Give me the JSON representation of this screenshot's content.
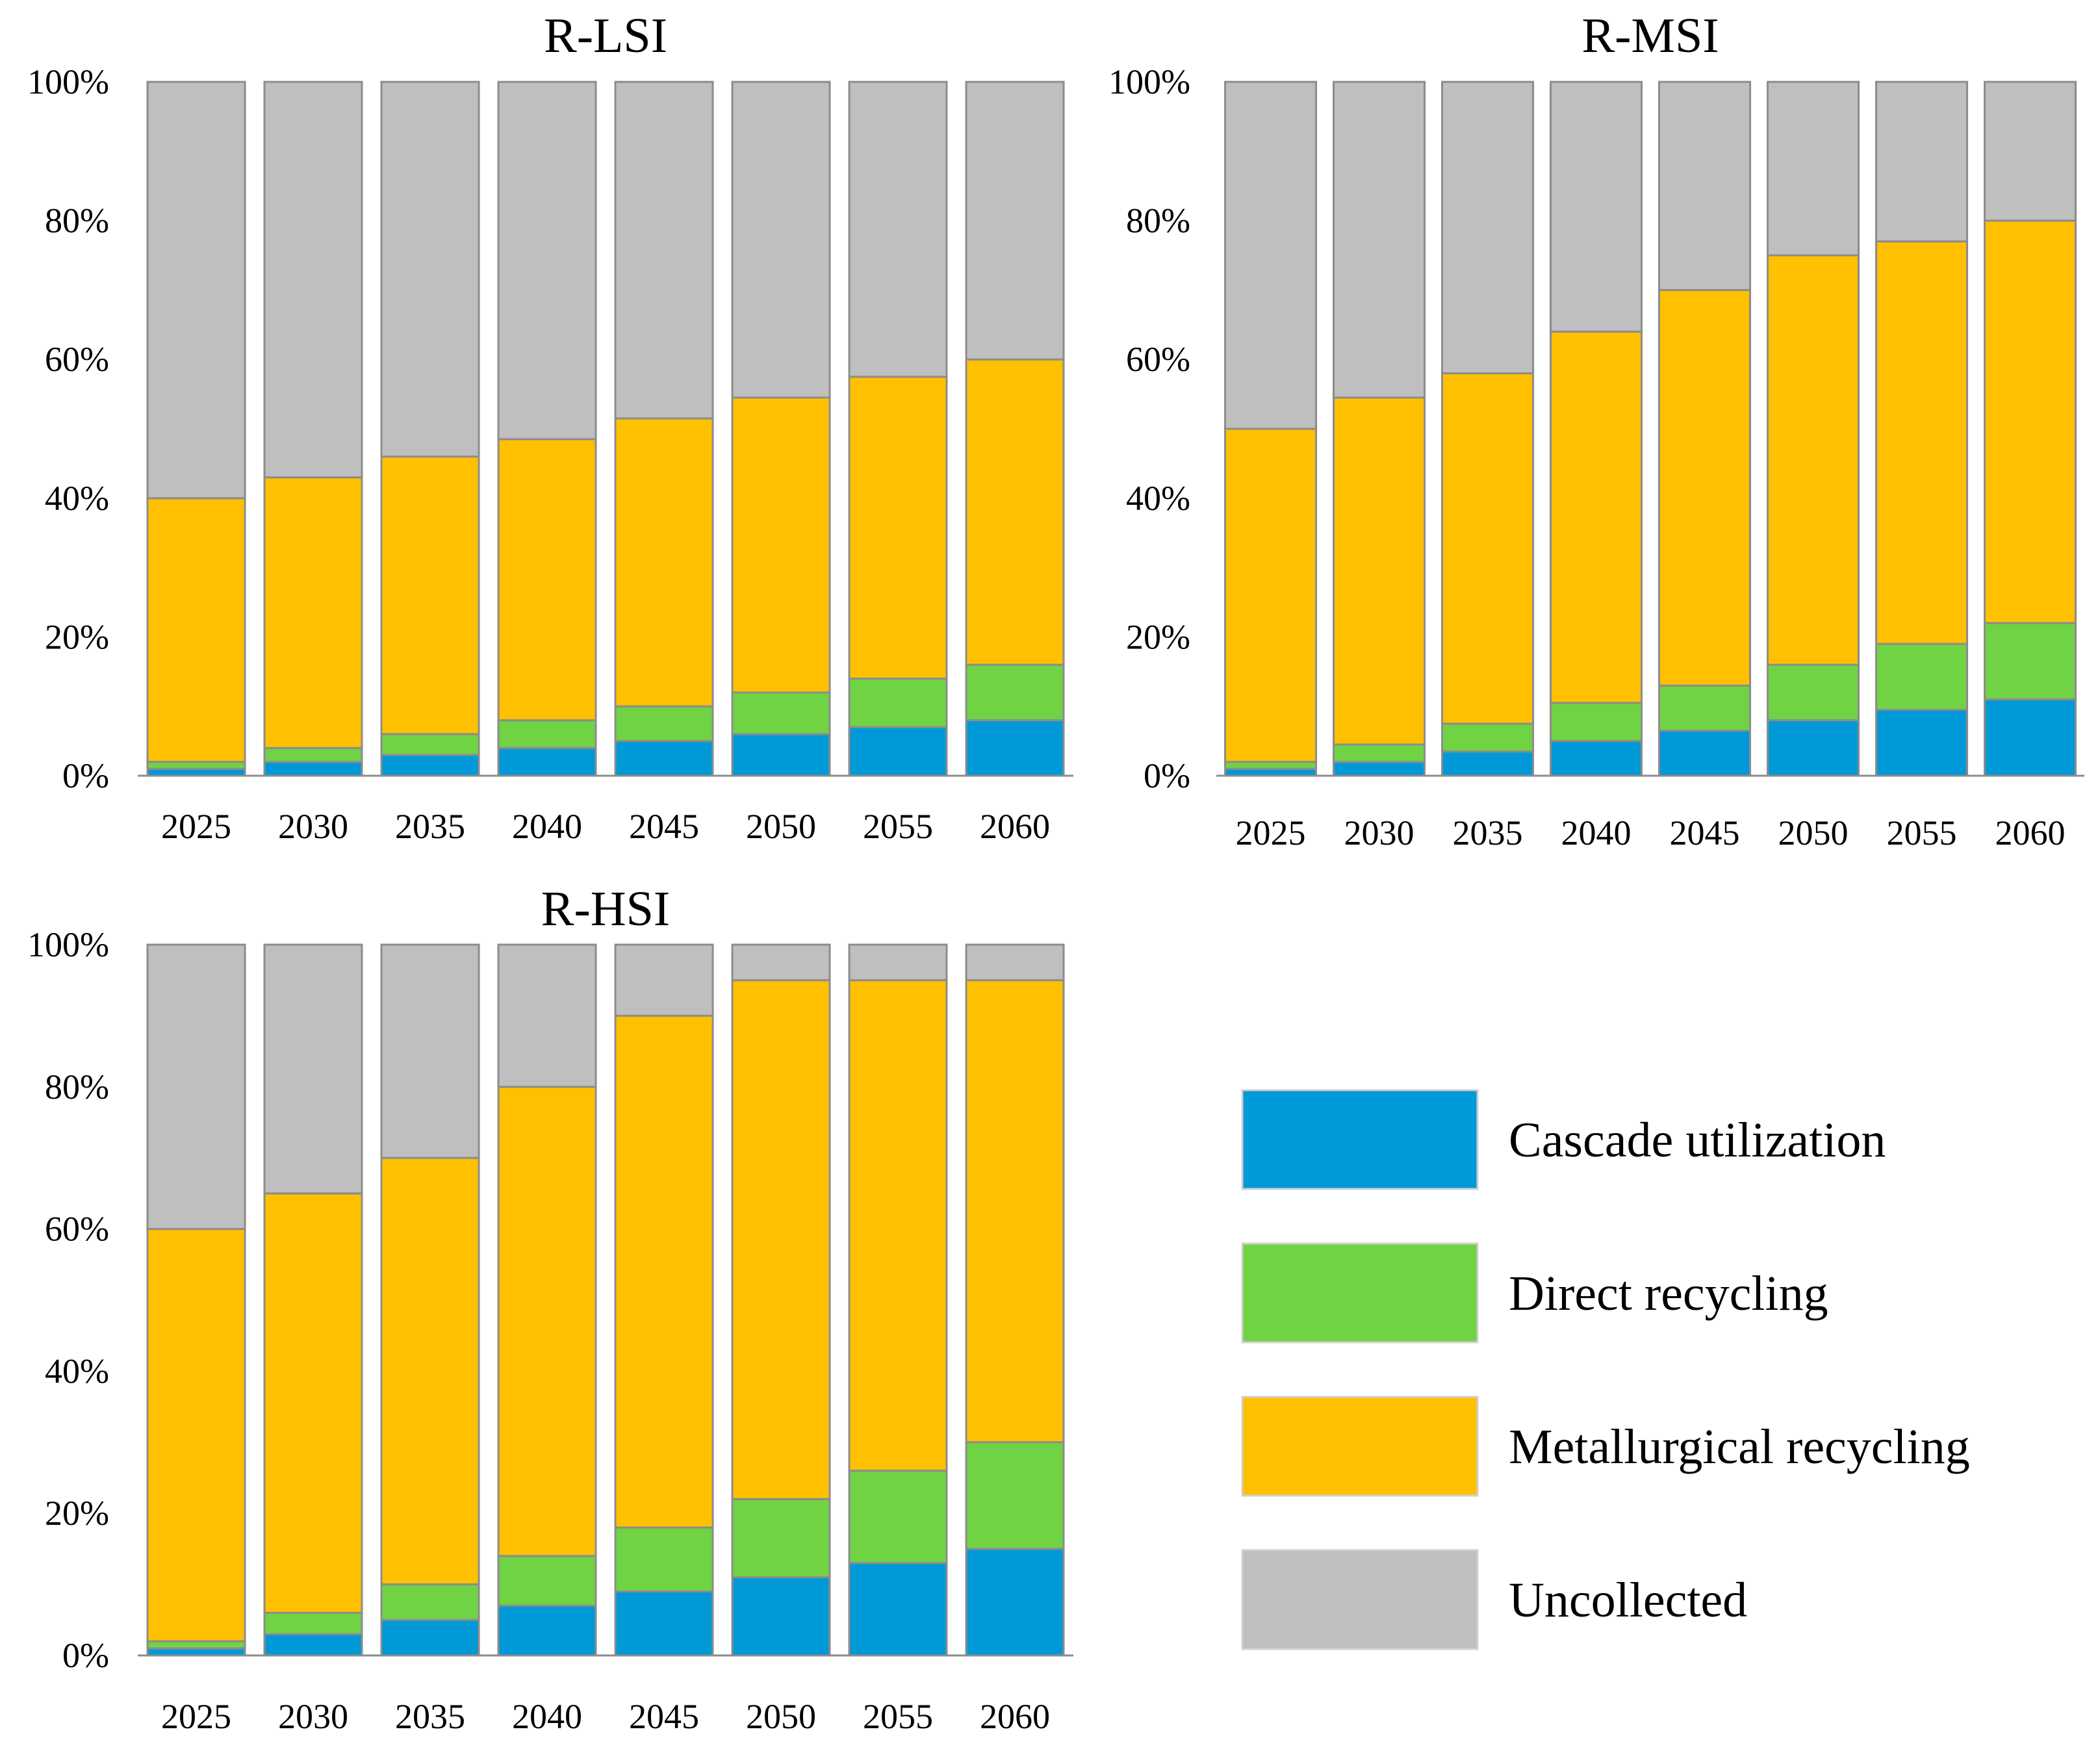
{
  "colors": {
    "cascade": "#0099D8",
    "direct": "#6FD344",
    "metallurgical": "#FFC000",
    "uncollected": "#BFBFBF",
    "bar_stroke": "#8C8C8C"
  },
  "legend": {
    "items": [
      {
        "key": "cascade",
        "label": "Cascade  utilization"
      },
      {
        "key": "direct",
        "label": "Direct recycling"
      },
      {
        "key": "metallurgical",
        "label": "Metallurgical  recycling"
      },
      {
        "key": "uncollected",
        "label": "Uncollected"
      }
    ]
  },
  "chart_data": [
    {
      "id": "lsi",
      "type": "bar",
      "stacked": true,
      "title": "R-LSI",
      "categories": [
        "2025",
        "2030",
        "2035",
        "2040",
        "2045",
        "2050",
        "2055",
        "2060"
      ],
      "ylim": [
        0,
        100
      ],
      "yticks": [
        "0%",
        "20%",
        "40%",
        "60%",
        "80%",
        "100%"
      ],
      "series": [
        {
          "key": "cascade",
          "name": "Cascade utilization",
          "values": [
            1,
            2,
            3,
            4,
            5,
            6,
            7,
            8
          ]
        },
        {
          "key": "direct",
          "name": "Direct recycling",
          "values": [
            1,
            2,
            3,
            4,
            5,
            6,
            7,
            8
          ]
        },
        {
          "key": "metallurgical",
          "name": "Metallurgical recycling",
          "values": [
            38,
            39,
            40,
            40.5,
            41.5,
            42.5,
            43.5,
            44
          ]
        },
        {
          "key": "uncollected",
          "name": "Uncollected",
          "values": [
            60,
            57,
            54,
            51.5,
            48.5,
            45.5,
            42.5,
            40
          ]
        }
      ]
    },
    {
      "id": "msi",
      "type": "bar",
      "stacked": true,
      "title": "R-MSI",
      "categories": [
        "2025",
        "2030",
        "2035",
        "2040",
        "2045",
        "2050",
        "2055",
        "2060"
      ],
      "ylim": [
        0,
        100
      ],
      "yticks": [
        "0%",
        "20%",
        "40%",
        "60%",
        "80%",
        "100%"
      ],
      "series": [
        {
          "key": "cascade",
          "name": "Cascade utilization",
          "values": [
            1,
            2,
            3.5,
            5,
            6.5,
            8,
            9.5,
            11
          ]
        },
        {
          "key": "direct",
          "name": "Direct recycling",
          "values": [
            1,
            2.5,
            4,
            5.5,
            6.5,
            8,
            9.5,
            11
          ]
        },
        {
          "key": "metallurgical",
          "name": "Metallurgical recycling",
          "values": [
            48,
            50,
            50.5,
            53.5,
            57,
            59,
            58,
            58
          ]
        },
        {
          "key": "uncollected",
          "name": "Uncollected",
          "values": [
            50,
            45.5,
            42,
            36,
            30,
            25,
            23,
            20
          ]
        }
      ]
    },
    {
      "id": "hsi",
      "type": "bar",
      "stacked": true,
      "title": "R-HSI",
      "categories": [
        "2025",
        "2030",
        "2035",
        "2040",
        "2045",
        "2050",
        "2055",
        "2060"
      ],
      "ylim": [
        0,
        100
      ],
      "yticks": [
        "0%",
        "20%",
        "40%",
        "60%",
        "80%",
        "100%"
      ],
      "series": [
        {
          "key": "cascade",
          "name": "Cascade utilization",
          "values": [
            1,
            3,
            5,
            7,
            9,
            11,
            13,
            15
          ]
        },
        {
          "key": "direct",
          "name": "Direct recycling",
          "values": [
            1,
            3,
            5,
            7,
            9,
            11,
            13,
            15
          ]
        },
        {
          "key": "metallurgical",
          "name": "Metallurgical recycling",
          "values": [
            58,
            59,
            60,
            66,
            72,
            73,
            69,
            65
          ]
        },
        {
          "key": "uncollected",
          "name": "Uncollected",
          "values": [
            40,
            35,
            30,
            20,
            10,
            5,
            5,
            5
          ]
        }
      ]
    }
  ]
}
